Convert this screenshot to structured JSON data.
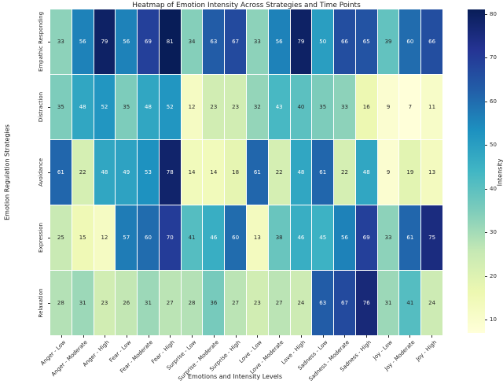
{
  "title": "Heatmap of Emotion Intensity Across Strategies and Time Points",
  "chart_data": {
    "type": "heatmap",
    "title": "Heatmap of Emotion Intensity Across Strategies and Time Points",
    "xlabel": "Emotions and Intensity Levels",
    "ylabel": "Emotion Regulation Strategies",
    "rows": [
      "Empathic Responding",
      "Distraction",
      "Avoidance",
      "Expression",
      "Relaxation"
    ],
    "columns": [
      "Anger - Low",
      "Anger - Moderate",
      "Anger - High",
      "Fear - Low",
      "Fear - Moderate",
      "Fear - High",
      "Surprise - Low",
      "Surprise - Moderate",
      "Surprise - High",
      "Love - Low",
      "Love - Moderate",
      "Love - High",
      "Sadness - Low",
      "Sadness - Moderate",
      "Sadness - High",
      "Joy - Low",
      "Joy - Moderate",
      "Joy - High"
    ],
    "values": [
      [
        33,
        56,
        79,
        56,
        69,
        81,
        34,
        63,
        67,
        33,
        56,
        79,
        50,
        66,
        65,
        39,
        60,
        66
      ],
      [
        35,
        48,
        52,
        35,
        48,
        52,
        12,
        23,
        23,
        32,
        43,
        40,
        35,
        33,
        16,
        9,
        7,
        11
      ],
      [
        61,
        22,
        48,
        49,
        53,
        78,
        14,
        14,
        18,
        61,
        22,
        48,
        61,
        22,
        48,
        9,
        19,
        13
      ],
      [
        25,
        15,
        12,
        57,
        60,
        70,
        41,
        46,
        60,
        13,
        38,
        46,
        45,
        56,
        69,
        33,
        61,
        75
      ],
      [
        28,
        31,
        23,
        26,
        31,
        27,
        28,
        36,
        27,
        23,
        27,
        24,
        63,
        67,
        76,
        31,
        41,
        24
      ]
    ],
    "colorbar": {
      "label": "Intensity",
      "ticks": [
        10,
        20,
        30,
        40,
        50,
        60,
        70,
        80
      ],
      "vmin": 7,
      "vmax": 81
    },
    "colormap": {
      "name": "YlGnBu",
      "stops": [
        "#ffffd9",
        "#edf8b1",
        "#c7e9b4",
        "#7fcdbb",
        "#41b6c4",
        "#1d91c0",
        "#225ea8",
        "#253494",
        "#081d58"
      ]
    },
    "annotation_colors": {
      "on_light": "#262626",
      "on_dark": "#ffffff"
    },
    "grid": false,
    "legend_position": "right-colorbar"
  }
}
